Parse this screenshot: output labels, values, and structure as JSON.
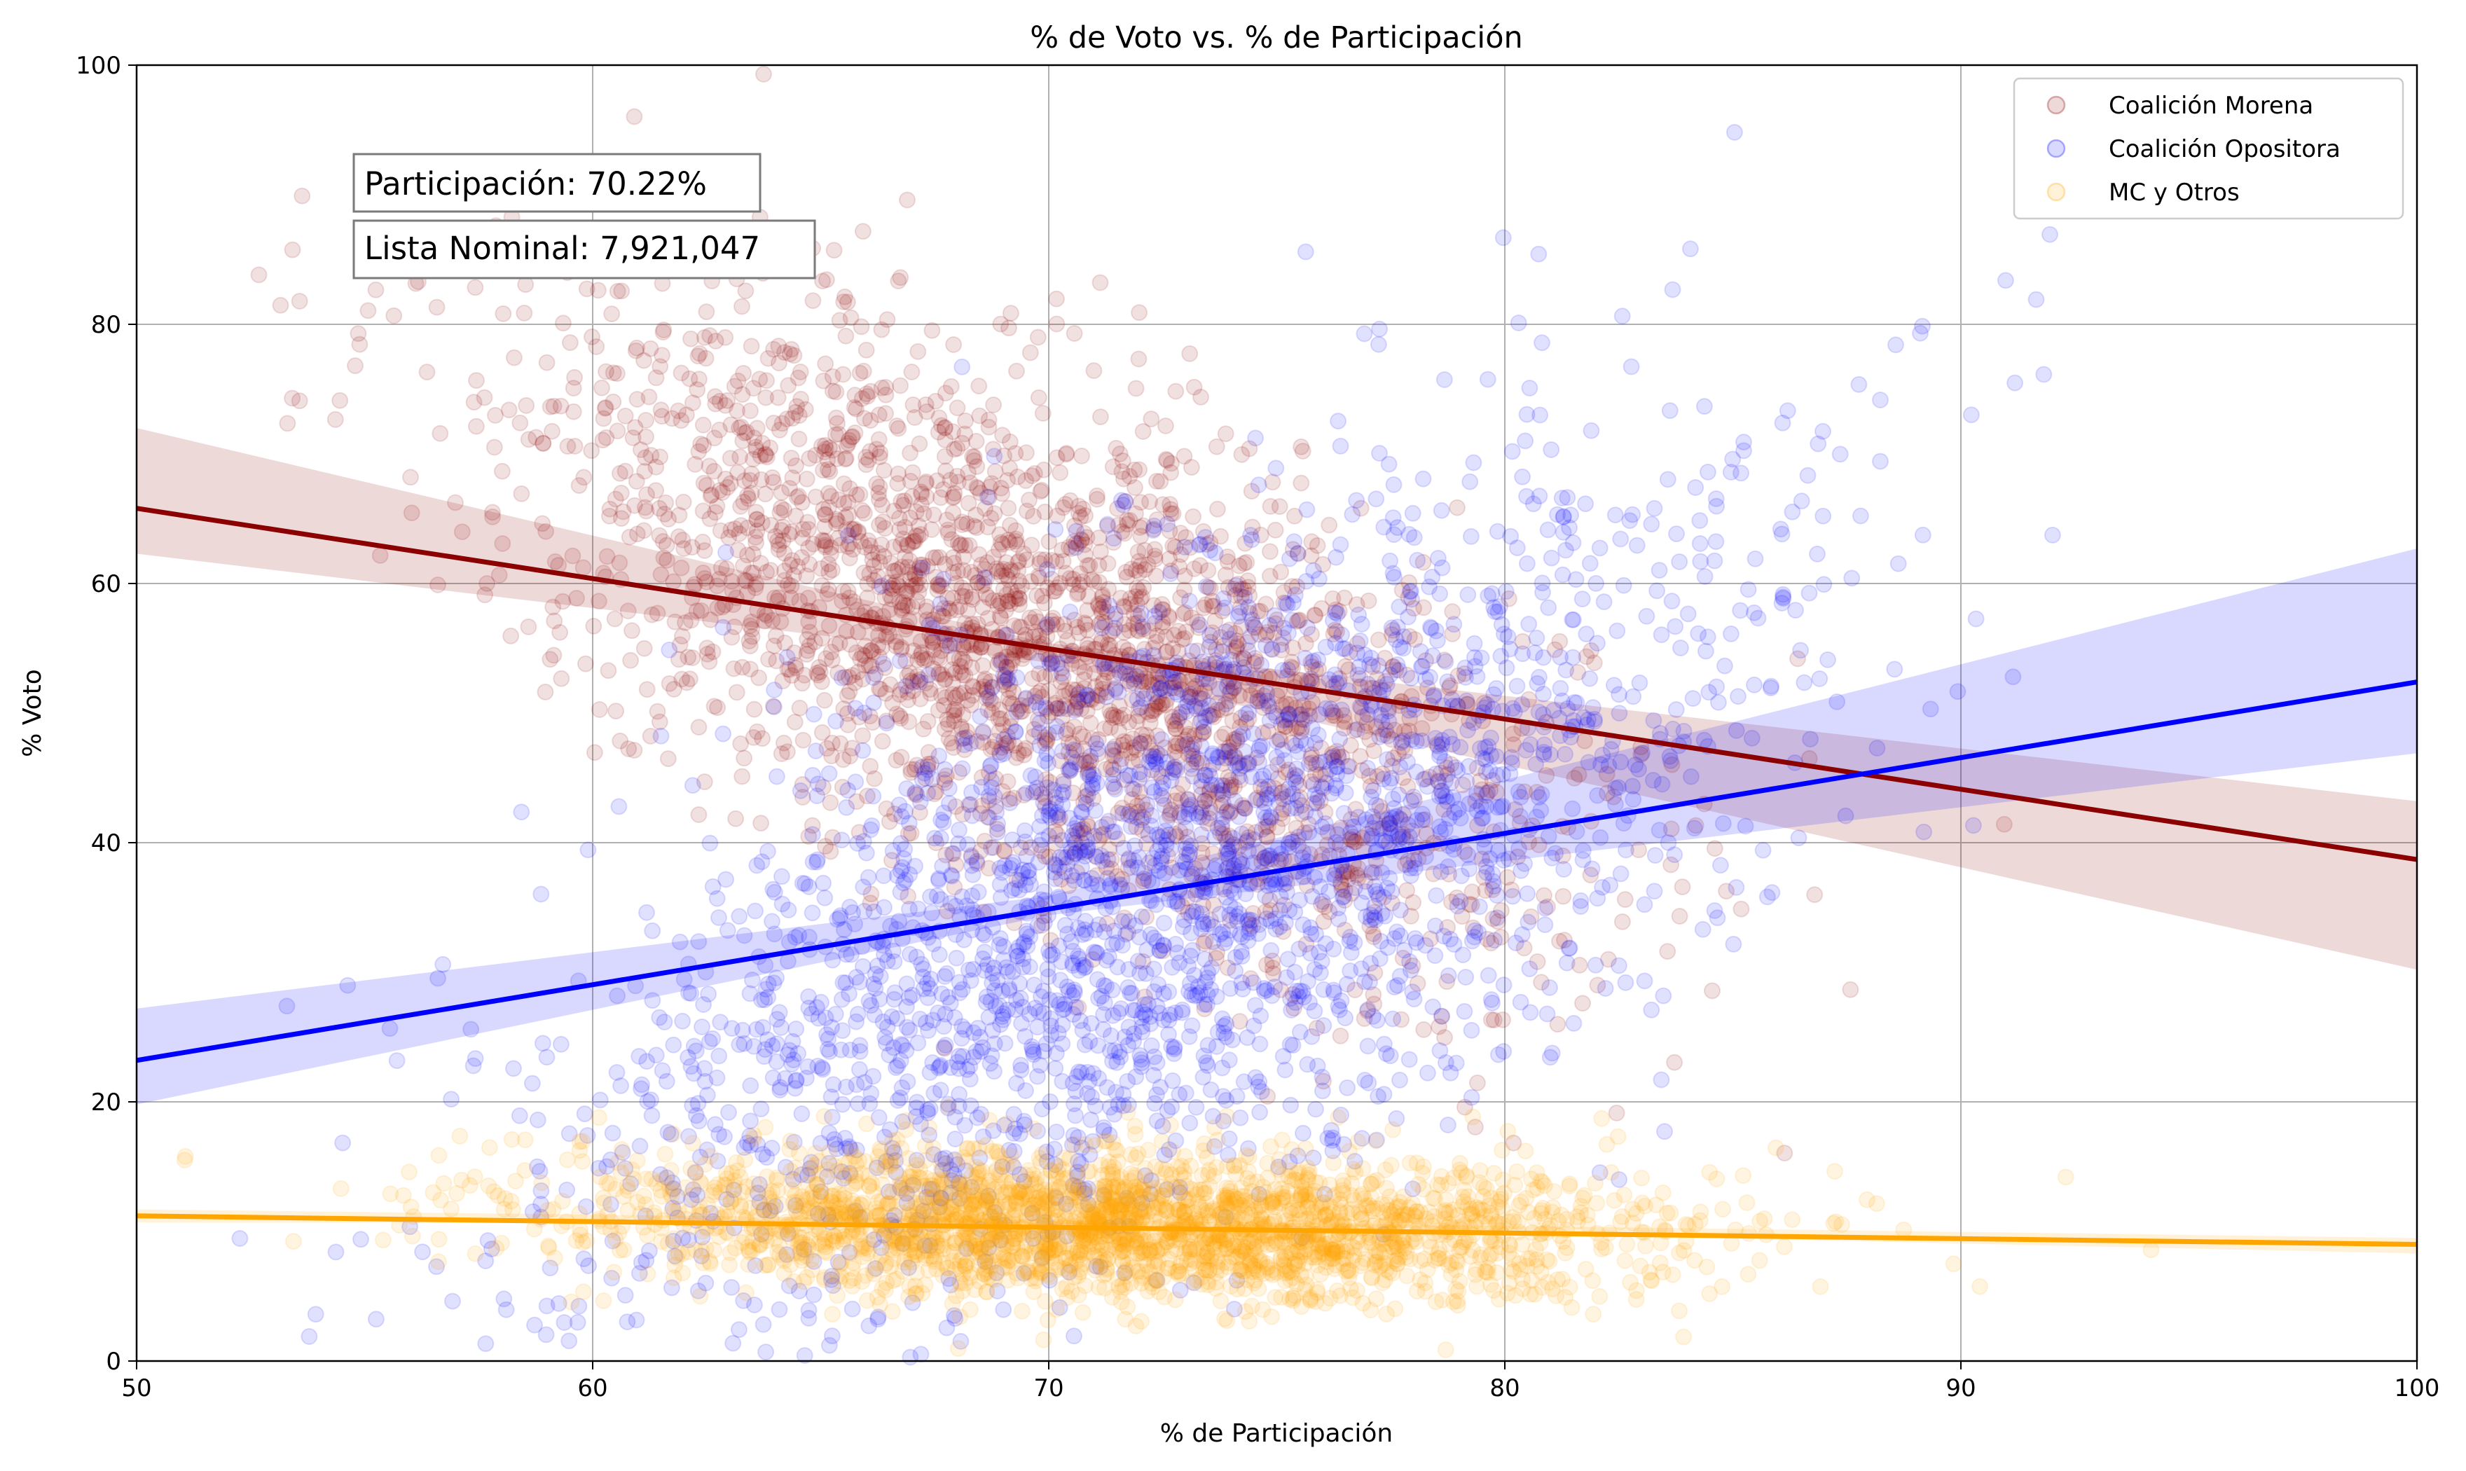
{
  "chart_data": {
    "type": "scatter",
    "title": "% de Voto vs. % de Participación",
    "xlabel": "% de Participación",
    "ylabel": "% Voto",
    "xlim": [
      50,
      100
    ],
    "ylim": [
      0,
      100
    ],
    "xticks": [
      "50",
      "60",
      "70",
      "80",
      "90",
      "100"
    ],
    "yticks": [
      "0",
      "20",
      "40",
      "60",
      "80",
      "100"
    ],
    "grid": true,
    "legend_position": "top-right",
    "annotations": [
      "Participación: 70.22%",
      "Lista Nominal: 7,921,047"
    ],
    "series": [
      {
        "name": "Coalición Morena",
        "color": "#8b0000",
        "point_alpha": 0.12,
        "cloud": {
          "x_mean": 69.5,
          "x_sd": 5.5,
          "y_mean": 56,
          "y_sd": 12,
          "corr": -0.62,
          "n": 2600
        },
        "trend": {
          "x": [
            50,
            100
          ],
          "y": [
            65.8,
            38.7
          ]
        },
        "band": {
          "x": [
            50,
            70,
            100
          ],
          "lower": [
            62.3,
            53.9,
            30.2
          ],
          "upper": [
            72.0,
            55.4,
            43.2
          ]
        }
      },
      {
        "name": "Coalición Opositora",
        "color": "#0000ff",
        "point_alpha": 0.12,
        "cloud": {
          "x_mean": 72.5,
          "x_sd": 6.5,
          "y_mean": 36,
          "y_sd": 16,
          "corr": 0.62,
          "n": 2600
        },
        "trend": {
          "x": [
            50,
            100
          ],
          "y": [
            23.2,
            52.4
          ]
        },
        "band": {
          "x": [
            50,
            70,
            100
          ],
          "lower": [
            19.8,
            34.4,
            46.9
          ],
          "upper": [
            27.2,
            35.9,
            62.7
          ]
        }
      },
      {
        "name": "MC y Otros",
        "color": "#ffa500",
        "point_alpha": 0.12,
        "cloud": {
          "x_mean": 71.5,
          "x_sd": 5.8,
          "y_mean": 10.5,
          "y_sd": 2.8,
          "corr": -0.15,
          "n": 2600
        },
        "trend": {
          "x": [
            50,
            100
          ],
          "y": [
            11.2,
            9.0
          ]
        },
        "band": {
          "x": [
            50,
            70,
            100
          ],
          "lower": [
            10.7,
            10.6,
            8.3
          ],
          "upper": [
            11.7,
            10.9,
            9.5
          ]
        }
      }
    ]
  }
}
